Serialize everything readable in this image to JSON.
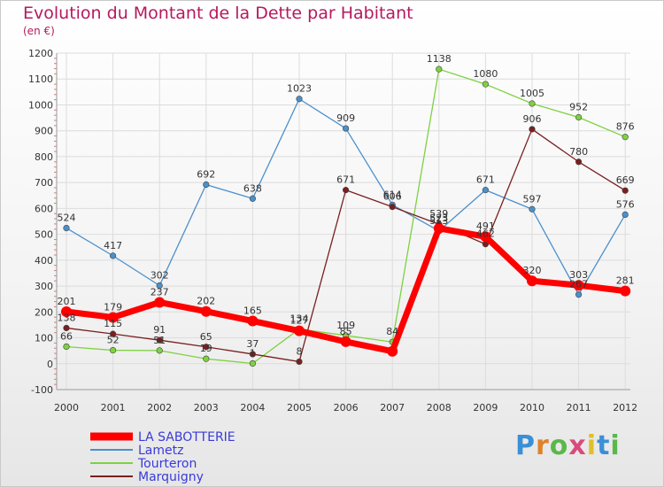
{
  "title": "Evolution du Montant de la Dette par Habitant",
  "subtitle": "(en €)",
  "logo": {
    "text": "Proxiti",
    "letter_colors": [
      "#3b8fd6",
      "#e0822a",
      "#5ab84a",
      "#d94a7a",
      "#e0c02a",
      "#3b8fd6",
      "#5ab84a"
    ]
  },
  "chart_data": {
    "type": "line",
    "x": [
      "2000",
      "2001",
      "2002",
      "2003",
      "2004",
      "2005",
      "2006",
      "2007",
      "2008",
      "2009",
      "2010",
      "2011",
      "2012"
    ],
    "ylim": [
      -100,
      1200
    ],
    "yticks": [
      "-100",
      "0",
      "100",
      "200",
      "300",
      "400",
      "500",
      "600",
      "700",
      "800",
      "900",
      "1000",
      "1100",
      "1200"
    ],
    "grid": true,
    "legend_position": "bottom-left",
    "series": [
      {
        "name": "LA SABOTTERIE",
        "color": "#ff0000",
        "line_width": 7,
        "marker": 6,
        "values": [
          201,
          179,
          237,
          202,
          165,
          127,
          85,
          48,
          523,
          491,
          320,
          303,
          281
        ],
        "labels": [
          "201",
          "179",
          "237",
          "202",
          "165",
          "127",
          "85",
          "",
          "523",
          "491",
          "320",
          "303",
          "281"
        ]
      },
      {
        "name": "Lametz",
        "color": "#4a90cc",
        "line_width": 1.3,
        "marker": 3.3,
        "values": [
          524,
          417,
          302,
          692,
          638,
          1023,
          909,
          614,
          513,
          671,
          597,
          267,
          576
        ],
        "labels": [
          "524",
          "417",
          "302",
          "692",
          "638",
          "1023",
          "909",
          "614",
          "513",
          "671",
          "597",
          "267",
          "576"
        ]
      },
      {
        "name": "Tourteron",
        "color": "#7ed140",
        "line_width": 1.3,
        "marker": 3.3,
        "values": [
          66,
          52,
          51,
          19,
          1,
          134,
          109,
          84,
          1138,
          1080,
          1005,
          952,
          876
        ],
        "labels": [
          "66",
          "52",
          "51",
          "19",
          "1",
          "134",
          "109",
          "84",
          "1138",
          "1080",
          "1005",
          "952",
          "876"
        ]
      },
      {
        "name": "Marquigny",
        "color": "#7a1f1f",
        "line_width": 1.3,
        "marker": 3.3,
        "values": [
          138,
          115,
          91,
          65,
          37,
          8,
          671,
          606,
          539,
          462,
          906,
          780,
          669
        ],
        "labels": [
          "138",
          "115",
          "91",
          "65",
          "37",
          "8",
          "671",
          "606",
          "539",
          "462",
          "906",
          "780",
          "669"
        ]
      }
    ]
  }
}
